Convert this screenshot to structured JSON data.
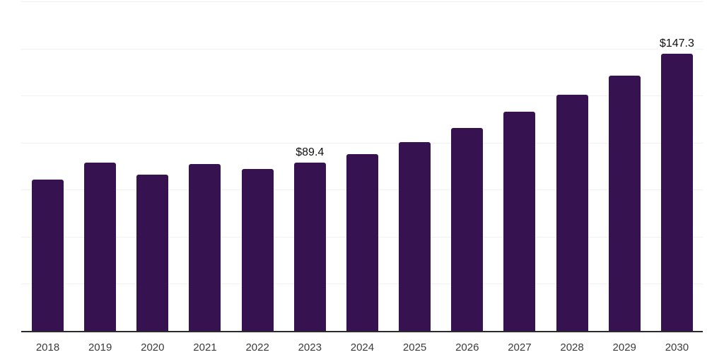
{
  "chart": {
    "background_color": "#ffffff",
    "bar_color": "#361250",
    "axis_color": "#2b2b2b",
    "grid_color": "#f1f1f3",
    "tick_label_color": "#3b3b3b",
    "value_label_color": "#0f0f0f"
  },
  "chart_data": {
    "type": "bar",
    "title": "",
    "xlabel": "",
    "ylabel": "",
    "categories": [
      "2018",
      "2019",
      "2020",
      "2021",
      "2022",
      "2023",
      "2024",
      "2025",
      "2026",
      "2027",
      "2028",
      "2029",
      "2030"
    ],
    "values": [
      80.5,
      89.3,
      83.0,
      88.5,
      86.1,
      89.4,
      93.9,
      100.4,
      107.8,
      116.4,
      125.4,
      135.7,
      147.3
    ],
    "value_labels": [
      "",
      "",
      "",
      "",
      "",
      "$89.4",
      "",
      "",
      "",
      "",
      "",
      "",
      "$147.3"
    ],
    "ylim": [
      0,
      175
    ],
    "grid_interval": 25,
    "grid": "horizontal",
    "legend_position": "none",
    "y_axis_tick_labels_visible": false,
    "currency_unit": "$"
  }
}
